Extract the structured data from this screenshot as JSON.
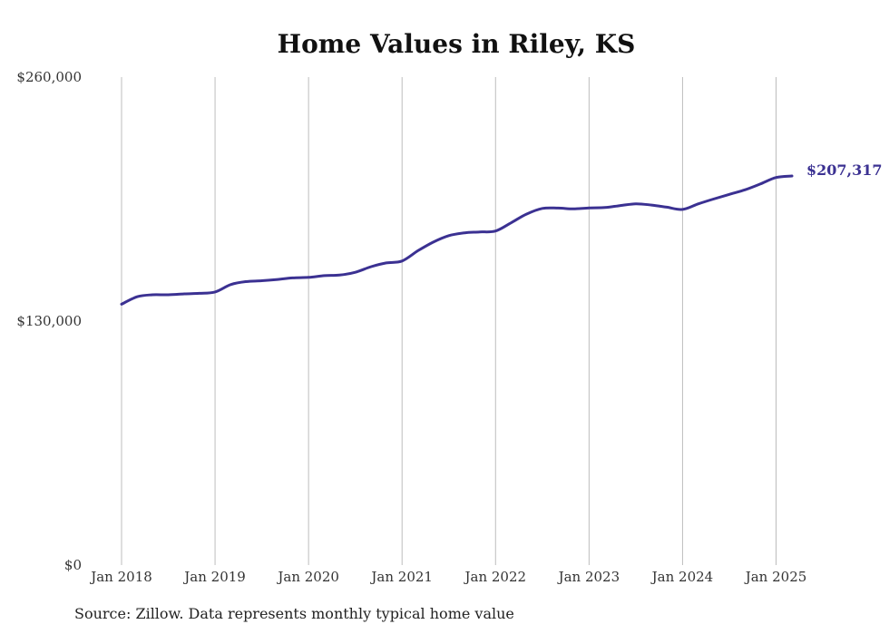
{
  "chart_data": {
    "type": "line",
    "title": "Home Values in Riley, KS",
    "xlabel": "",
    "ylabel": "",
    "ylim": [
      0,
      260000
    ],
    "y_ticks": [
      {
        "value": 0,
        "label": "$0"
      },
      {
        "value": 130000,
        "label": "$130,000"
      },
      {
        "value": 260000,
        "label": "$260,000"
      }
    ],
    "x_ticks": [
      {
        "value": 2018,
        "label": "Jan 2018"
      },
      {
        "value": 2019,
        "label": "Jan 2019"
      },
      {
        "value": 2020,
        "label": "Jan 2020"
      },
      {
        "value": 2021,
        "label": "Jan 2021"
      },
      {
        "value": 2022,
        "label": "Jan 2022"
      },
      {
        "value": 2023,
        "label": "Jan 2023"
      },
      {
        "value": 2024,
        "label": "Jan 2024"
      },
      {
        "value": 2025,
        "label": "Jan 2025"
      }
    ],
    "grid": "vertical",
    "series": [
      {
        "color": "#3b3192",
        "end_label": "$207,317",
        "points": [
          [
            2018.0,
            139000
          ],
          [
            2018.17,
            143000
          ],
          [
            2018.33,
            144000
          ],
          [
            2018.5,
            144000
          ],
          [
            2018.67,
            144500
          ],
          [
            2018.83,
            144800
          ],
          [
            2019.0,
            145500
          ],
          [
            2019.17,
            149500
          ],
          [
            2019.33,
            151000
          ],
          [
            2019.5,
            151500
          ],
          [
            2019.67,
            152200
          ],
          [
            2019.83,
            153000
          ],
          [
            2020.0,
            153300
          ],
          [
            2020.17,
            154200
          ],
          [
            2020.33,
            154500
          ],
          [
            2020.5,
            156000
          ],
          [
            2020.67,
            159000
          ],
          [
            2020.83,
            161000
          ],
          [
            2021.0,
            162000
          ],
          [
            2021.17,
            167500
          ],
          [
            2021.33,
            172000
          ],
          [
            2021.5,
            175500
          ],
          [
            2021.67,
            177000
          ],
          [
            2021.83,
            177500
          ],
          [
            2022.0,
            178000
          ],
          [
            2022.17,
            182500
          ],
          [
            2022.33,
            187000
          ],
          [
            2022.5,
            190000
          ],
          [
            2022.67,
            190200
          ],
          [
            2022.83,
            189800
          ],
          [
            2023.0,
            190300
          ],
          [
            2023.17,
            190500
          ],
          [
            2023.33,
            191500
          ],
          [
            2023.5,
            192500
          ],
          [
            2023.67,
            191800
          ],
          [
            2023.83,
            190700
          ],
          [
            2024.0,
            189500
          ],
          [
            2024.17,
            192500
          ],
          [
            2024.33,
            195000
          ],
          [
            2024.5,
            197500
          ],
          [
            2024.67,
            200000
          ],
          [
            2024.83,
            203000
          ],
          [
            2025.0,
            206500
          ],
          [
            2025.17,
            207317
          ]
        ]
      }
    ]
  },
  "footer": {
    "source": "Source: Zillow. Data represents monthly typical home value"
  }
}
